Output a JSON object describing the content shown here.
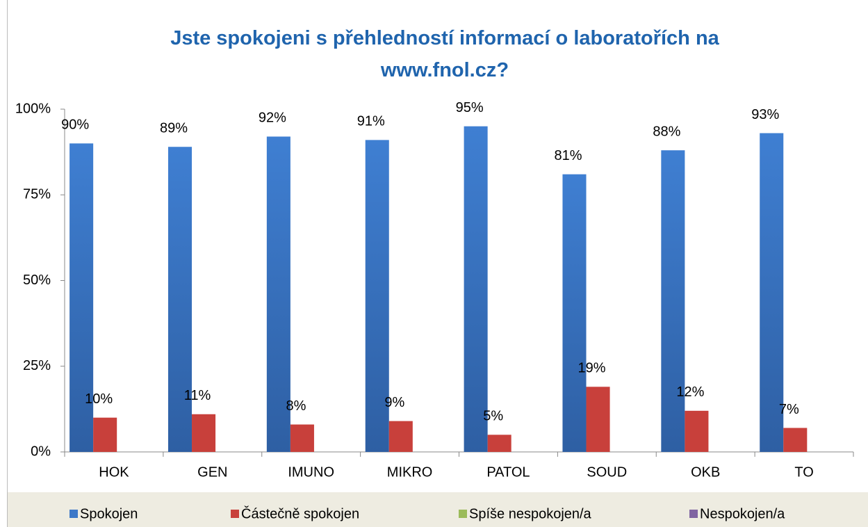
{
  "chart_data": {
    "type": "bar",
    "title": "Jste spokojeni s přehledností informací o laboratořích na www.fnol.cz?",
    "categories": [
      "HOK",
      "GEN",
      "IMUNO",
      "MIKRO",
      "PATOL",
      "SOUD",
      "OKB",
      "TO"
    ],
    "series": [
      {
        "name": "Spokojen",
        "color": "#3c78c8",
        "values": [
          90,
          89,
          92,
          91,
          95,
          81,
          88,
          93
        ],
        "value_labels": [
          "90%",
          "89%",
          "92%",
          "91%",
          "95%",
          "81%",
          "88%",
          "93%"
        ]
      },
      {
        "name": "Částečně spokojen",
        "color": "#c8403b",
        "values": [
          10,
          11,
          8,
          9,
          5,
          19,
          12,
          7
        ],
        "value_labels": [
          "10%",
          "11%",
          "8%",
          "9%",
          "5%",
          "19%",
          "12%",
          "7%"
        ]
      },
      {
        "name": "Spíše nespokojen/a",
        "color": "#9bbb59",
        "values": [
          0,
          0,
          0,
          0,
          0,
          0,
          0,
          0
        ]
      },
      {
        "name": "Nespokojen/a",
        "color": "#8064a2",
        "values": [
          0,
          0,
          0,
          0,
          0,
          0,
          0,
          0
        ]
      }
    ],
    "ylim": [
      0,
      100
    ],
    "yticks": [
      {
        "value": 0,
        "label": "0%"
      },
      {
        "value": 25,
        "label": "25%"
      },
      {
        "value": 50,
        "label": "50%"
      },
      {
        "value": 75,
        "label": "75%"
      },
      {
        "value": 100,
        "label": "100%"
      }
    ],
    "legend": "bottom"
  }
}
